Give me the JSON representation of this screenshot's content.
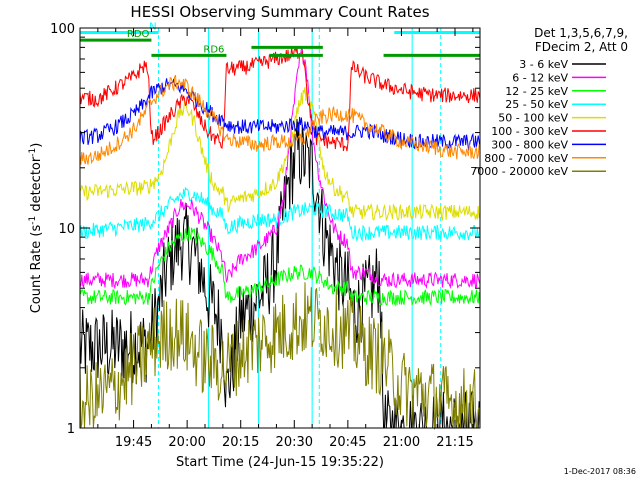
{
  "chart_data": {
    "type": "line",
    "title": "HESSI Observing Summary Count Rates",
    "xlabel": "Start Time (24-Jun-15 19:35:22)",
    "ylabel": "Count Rate (s-1 detector-1)",
    "ylabel_parts": {
      "pre": "Count Rate (s",
      "sup1": "-1",
      "mid": " detector",
      "sup2": "-1",
      "post": ")"
    },
    "yscale": "log",
    "xlim_min": [
      -5,
      107
    ],
    "ylim": [
      1,
      100
    ],
    "xticks": [
      {
        "min": 10,
        "label": "19:45"
      },
      {
        "min": 25,
        "label": "20:00"
      },
      {
        "min": 40,
        "label": "20:15"
      },
      {
        "min": 55,
        "label": "20:30"
      },
      {
        "min": 70,
        "label": "20:45"
      },
      {
        "min": 85,
        "label": "21:00"
      },
      {
        "min": 100,
        "label": "21:15"
      }
    ],
    "yticks": [
      {
        "value": 1,
        "label": "1"
      },
      {
        "value": 10,
        "label": "10"
      },
      {
        "value": 100,
        "label": "100"
      }
    ],
    "legend": {
      "header": [
        "Det 1,3,5,6,7,9,",
        "FDecim 2, Att 0"
      ],
      "placement": "right"
    },
    "series": [
      {
        "name": "3 - 6 keV",
        "color": "#000000",
        "x": [
          -5,
          14,
          17,
          19,
          21,
          23,
          25,
          27,
          29,
          31,
          33,
          35,
          36,
          38,
          40,
          45,
          47,
          50,
          52,
          54,
          56,
          58,
          60,
          62,
          63,
          66,
          68,
          70,
          71,
          73,
          75,
          77,
          79,
          80,
          85,
          90,
          95,
          100,
          107
        ],
        "y": [
          2.5,
          2.6,
          4,
          6,
          7.5,
          8.5,
          8.5,
          7.5,
          6,
          4.5,
          3.8,
          3,
          1.5,
          2.2,
          3.5,
          4.5,
          5,
          7,
          12,
          19,
          24,
          22,
          20,
          14,
          10,
          7,
          5.5,
          5,
          4,
          4,
          4.5,
          5,
          6,
          1,
          1,
          1,
          1,
          1,
          1
        ]
      },
      {
        "name": "6 - 12 keV",
        "color": "#ff00ff",
        "x": [
          -5,
          14,
          17,
          20,
          23,
          26,
          29,
          32,
          35,
          36,
          40,
          45,
          48,
          50,
          52,
          54,
          56,
          57,
          58,
          59,
          60,
          62,
          64,
          66,
          68,
          70,
          71,
          75,
          80,
          85,
          90,
          95,
          100,
          107
        ],
        "y": [
          5.5,
          5.5,
          8,
          10,
          13,
          13,
          11,
          9,
          7,
          5.5,
          7,
          8,
          9,
          10,
          14,
          30,
          60,
          75,
          70,
          50,
          30,
          18,
          13,
          10,
          9,
          8.5,
          6,
          6,
          5.5,
          5.5,
          5.5,
          5.5,
          5.5,
          5.5
        ]
      },
      {
        "name": "12 - 25 keV",
        "color": "#00ff00",
        "x": [
          -5,
          14,
          17,
          20,
          23,
          26,
          29,
          32,
          35,
          36,
          45,
          50,
          55,
          60,
          63,
          66,
          70,
          71,
          80,
          90,
          107
        ],
        "y": [
          4.5,
          4.5,
          6.5,
          8,
          9,
          9.5,
          8.5,
          7.5,
          6,
          4.5,
          5,
          5.5,
          6,
          6,
          5.5,
          5,
          5,
          4.5,
          4.5,
          4.5,
          4.5
        ]
      },
      {
        "name": "25 - 50 keV",
        "color": "#00ffff",
        "x": [
          -5,
          14,
          17,
          20,
          23,
          26,
          29,
          32,
          35,
          36,
          40,
          45,
          50,
          55,
          60,
          65,
          70,
          71,
          75,
          80,
          85,
          90,
          95,
          100,
          107
        ],
        "y": [
          9.5,
          10.5,
          11.5,
          13,
          14.5,
          15,
          14,
          12.5,
          11.5,
          10,
          10.5,
          11,
          11,
          12,
          12.5,
          12,
          11.5,
          9.5,
          9.5,
          9.5,
          9.5,
          9.5,
          9.5,
          9.5,
          9.5
        ]
      },
      {
        "name": "50 - 100 keV",
        "color": "#dddd00",
        "x": [
          -5,
          14,
          17,
          19,
          21,
          23,
          25,
          27,
          29,
          31,
          33,
          35,
          36,
          40,
          45,
          50,
          54,
          56,
          58,
          60,
          62,
          63,
          66,
          70,
          71,
          75,
          80,
          85,
          90,
          95,
          100,
          107
        ],
        "y": [
          15,
          16,
          18,
          22,
          30,
          38,
          40,
          34,
          25,
          19,
          16,
          15,
          13,
          14,
          15,
          17,
          26,
          40,
          48,
          40,
          28,
          20,
          16,
          14,
          12,
          12,
          12,
          12,
          12,
          12,
          12,
          12
        ]
      },
      {
        "name": "100 - 300 keV",
        "color": "#ff0000",
        "x": [
          -5,
          0,
          5,
          10,
          13,
          14,
          15,
          17,
          19,
          21,
          23,
          25,
          27,
          29,
          31,
          33,
          35,
          36,
          40,
          45,
          50,
          55,
          57,
          58,
          59,
          60,
          61,
          65,
          70,
          71,
          72,
          73,
          75,
          80,
          85,
          90,
          95,
          100,
          107
        ],
        "y": [
          45,
          44,
          50,
          57,
          65,
          63,
          28,
          30,
          34,
          38,
          42,
          45,
          40,
          34,
          30,
          28,
          26,
          62,
          63,
          66,
          70,
          74,
          78,
          66,
          40,
          35,
          28,
          27,
          26,
          62,
          63,
          60,
          57,
          52,
          49,
          47,
          46,
          46,
          46
        ]
      },
      {
        "name": "300 - 800 keV",
        "color": "#0000ff",
        "x": [
          -5,
          0,
          5,
          10,
          13,
          15,
          17,
          20,
          23,
          25,
          27,
          30,
          33,
          35,
          36,
          40,
          45,
          50,
          55,
          58,
          60,
          63,
          66,
          70,
          72,
          75,
          80,
          85,
          90,
          95,
          100,
          107
        ],
        "y": [
          28,
          29,
          32,
          37,
          42,
          47,
          50,
          52,
          51,
          48,
          45,
          40,
          36,
          35,
          33,
          32,
          32,
          32,
          33,
          33,
          31,
          30,
          30,
          30,
          30,
          31,
          29,
          28,
          27,
          27,
          27,
          27
        ]
      },
      {
        "name": "800 - 7000 keV",
        "color": "#ff8800",
        "x": [
          -5,
          0,
          5,
          10,
          13,
          15,
          17,
          20,
          23,
          25,
          27,
          30,
          33,
          35,
          36,
          40,
          45,
          50,
          55,
          58,
          60,
          63,
          66,
          70,
          72,
          75,
          80,
          85,
          90,
          95,
          100,
          107
        ],
        "y": [
          22,
          23,
          26,
          31,
          37,
          43,
          47,
          52,
          54,
          51,
          46,
          40,
          34,
          30,
          28,
          27,
          26,
          27,
          27,
          28,
          33,
          36,
          37,
          37,
          36,
          33,
          30,
          27,
          26,
          25,
          24,
          24
        ]
      },
      {
        "name": "7000 - 20000 keV",
        "color": "#808000",
        "x": [
          -5,
          0,
          5,
          10,
          13,
          15,
          17,
          20,
          23,
          25,
          27,
          30,
          33,
          35,
          36,
          40,
          45,
          50,
          55,
          58,
          60,
          63,
          66,
          70,
          72,
          75,
          80,
          85,
          90,
          95,
          100,
          107
        ],
        "y": [
          1.3,
          1.4,
          1.6,
          2.0,
          2.3,
          2.6,
          2.8,
          3.0,
          3.0,
          2.8,
          2.5,
          2.2,
          2.1,
          2.0,
          2.0,
          2.4,
          2.7,
          3.0,
          3.3,
          3.5,
          3.5,
          3.4,
          3.2,
          3.0,
          2.8,
          2.5,
          2.2,
          1.6,
          1.5,
          1.4,
          1.3,
          1.3
        ]
      }
    ],
    "flags": [
      {
        "name": "N",
        "color": "#00ffff",
        "level": 95,
        "segments": [
          [
            -5,
            17
          ]
        ]
      },
      {
        "name": "",
        "color": "#00ffff",
        "level": 95,
        "segments": [
          [
            83,
            107
          ]
        ]
      },
      {
        "name": "RDO",
        "color": "#009900",
        "level": 87,
        "segments": [
          [
            -5,
            15
          ]
        ]
      },
      {
        "name": "RD6",
        "color": "#009900",
        "level": 73,
        "segments": [
          [
            15,
            36
          ],
          [
            48,
            63
          ],
          [
            80,
            107
          ]
        ]
      },
      {
        "name": "",
        "color": "#009900",
        "level": 80,
        "segments": [
          [
            43,
            63
          ]
        ]
      }
    ],
    "vlines": {
      "solid": [
        -5,
        31,
        45,
        60,
        88
      ],
      "dashed": [
        17,
        62,
        96
      ]
    },
    "timestamp": "1-Dec-2017 08:36"
  }
}
